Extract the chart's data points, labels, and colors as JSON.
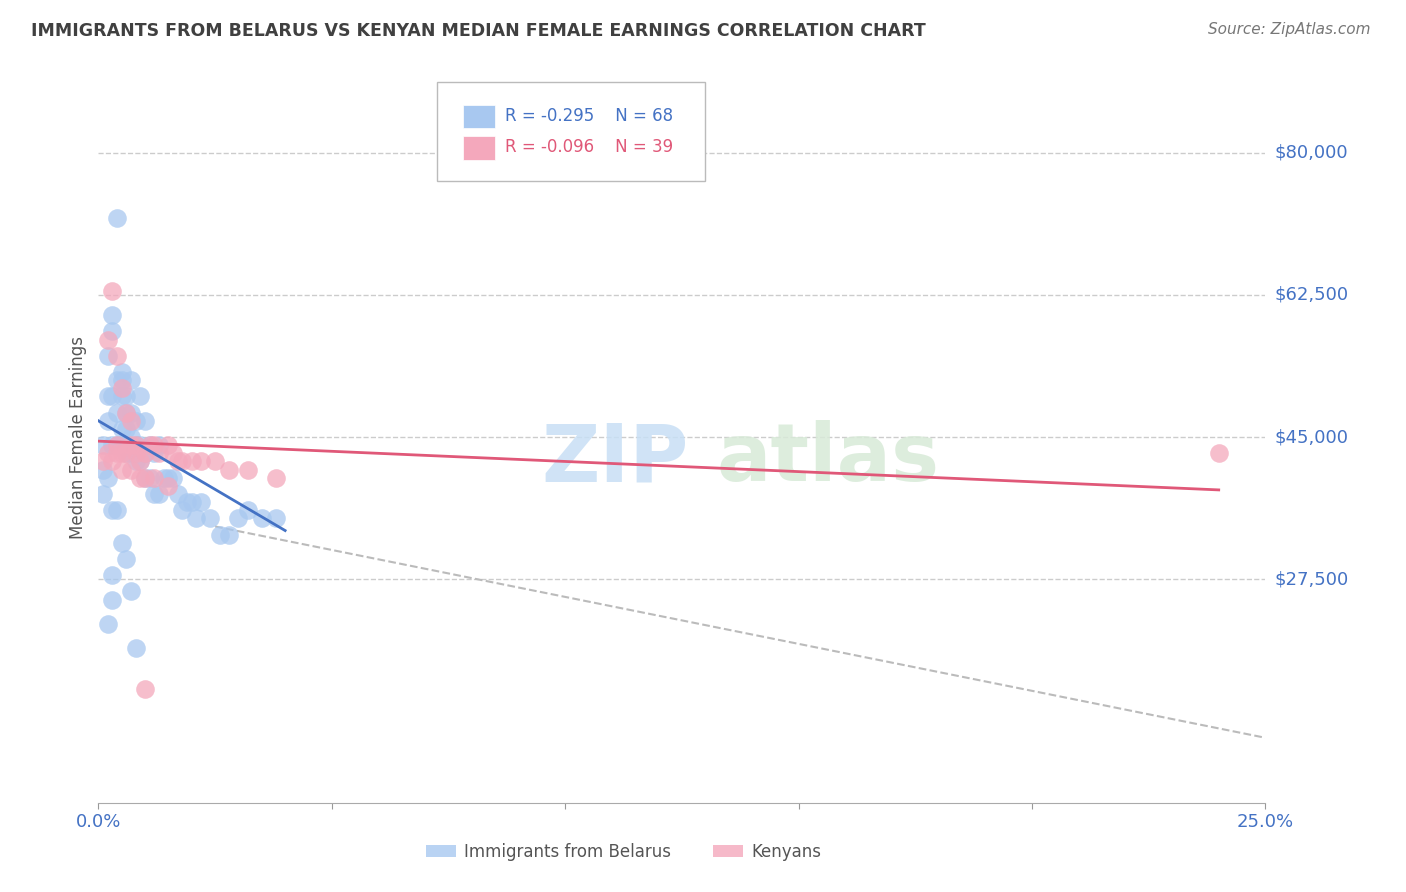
{
  "title": "IMMIGRANTS FROM BELARUS VS KENYAN MEDIAN FEMALE EARNINGS CORRELATION CHART",
  "source": "Source: ZipAtlas.com",
  "ylabel": "Median Female Earnings",
  "ymin": 0,
  "ymax": 90000,
  "xmin": 0.0,
  "xmax": 0.25,
  "legend_blue_r": "-0.295",
  "legend_blue_n": "68",
  "legend_pink_r": "-0.096",
  "legend_pink_n": "39",
  "legend_label_blue": "Immigrants from Belarus",
  "legend_label_pink": "Kenyans",
  "blue_color": "#A8C8F0",
  "pink_color": "#F4A8BC",
  "blue_line_color": "#4472C4",
  "pink_line_color": "#E05878",
  "dashed_line_color": "#BBBBBB",
  "axis_label_color": "#4472C4",
  "title_color": "#404040",
  "grid_color": "#CCCCCC",
  "ytick_vals": [
    27500,
    45000,
    62500,
    80000
  ],
  "ytick_labels": [
    "$27,500",
    "$45,000",
    "$62,500",
    "$80,000"
  ],
  "blue_scatter_x": [
    0.001,
    0.001,
    0.002,
    0.002,
    0.002,
    0.002,
    0.003,
    0.003,
    0.003,
    0.003,
    0.003,
    0.004,
    0.004,
    0.004,
    0.004,
    0.005,
    0.005,
    0.005,
    0.005,
    0.005,
    0.006,
    0.006,
    0.006,
    0.006,
    0.007,
    0.007,
    0.007,
    0.007,
    0.008,
    0.008,
    0.008,
    0.009,
    0.009,
    0.009,
    0.01,
    0.01,
    0.01,
    0.011,
    0.011,
    0.012,
    0.012,
    0.013,
    0.013,
    0.014,
    0.015,
    0.016,
    0.017,
    0.018,
    0.019,
    0.02,
    0.021,
    0.022,
    0.024,
    0.026,
    0.028,
    0.03,
    0.032,
    0.035,
    0.038,
    0.001,
    0.002,
    0.003,
    0.003,
    0.004,
    0.005,
    0.006,
    0.007,
    0.008
  ],
  "blue_scatter_y": [
    38000,
    44000,
    22000,
    47000,
    50000,
    55000,
    25000,
    44000,
    50000,
    58000,
    60000,
    44000,
    48000,
    52000,
    72000,
    44000,
    46000,
    50000,
    52000,
    53000,
    43000,
    46000,
    48000,
    50000,
    43000,
    45000,
    48000,
    52000,
    42000,
    44000,
    47000,
    42000,
    44000,
    50000,
    40000,
    43000,
    47000,
    40000,
    44000,
    38000,
    43000,
    38000,
    44000,
    40000,
    40000,
    40000,
    38000,
    36000,
    37000,
    37000,
    35000,
    37000,
    35000,
    33000,
    33000,
    35000,
    36000,
    35000,
    35000,
    41000,
    40000,
    36000,
    28000,
    36000,
    32000,
    30000,
    26000,
    19000
  ],
  "pink_scatter_x": [
    0.001,
    0.002,
    0.002,
    0.003,
    0.004,
    0.004,
    0.005,
    0.005,
    0.006,
    0.006,
    0.007,
    0.007,
    0.008,
    0.008,
    0.009,
    0.01,
    0.011,
    0.012,
    0.013,
    0.015,
    0.016,
    0.017,
    0.018,
    0.02,
    0.022,
    0.025,
    0.028,
    0.032,
    0.038,
    0.003,
    0.004,
    0.005,
    0.007,
    0.009,
    0.01,
    0.012,
    0.015,
    0.24,
    0.01
  ],
  "pink_scatter_y": [
    42000,
    43000,
    57000,
    63000,
    44000,
    55000,
    43000,
    51000,
    43000,
    48000,
    44000,
    47000,
    43000,
    44000,
    42000,
    43000,
    44000,
    44000,
    43000,
    44000,
    43000,
    42000,
    42000,
    42000,
    42000,
    42000,
    41000,
    41000,
    40000,
    42000,
    43000,
    41000,
    41000,
    40000,
    40000,
    40000,
    39000,
    43000,
    14000
  ],
  "blue_line_x": [
    0.0,
    0.04
  ],
  "blue_line_y": [
    47000,
    33500
  ],
  "pink_line_x": [
    0.0,
    0.24
  ],
  "pink_line_y": [
    44500,
    38500
  ],
  "dashed_line_x": [
    0.025,
    0.25
  ],
  "dashed_line_y": [
    34000,
    8000
  ]
}
